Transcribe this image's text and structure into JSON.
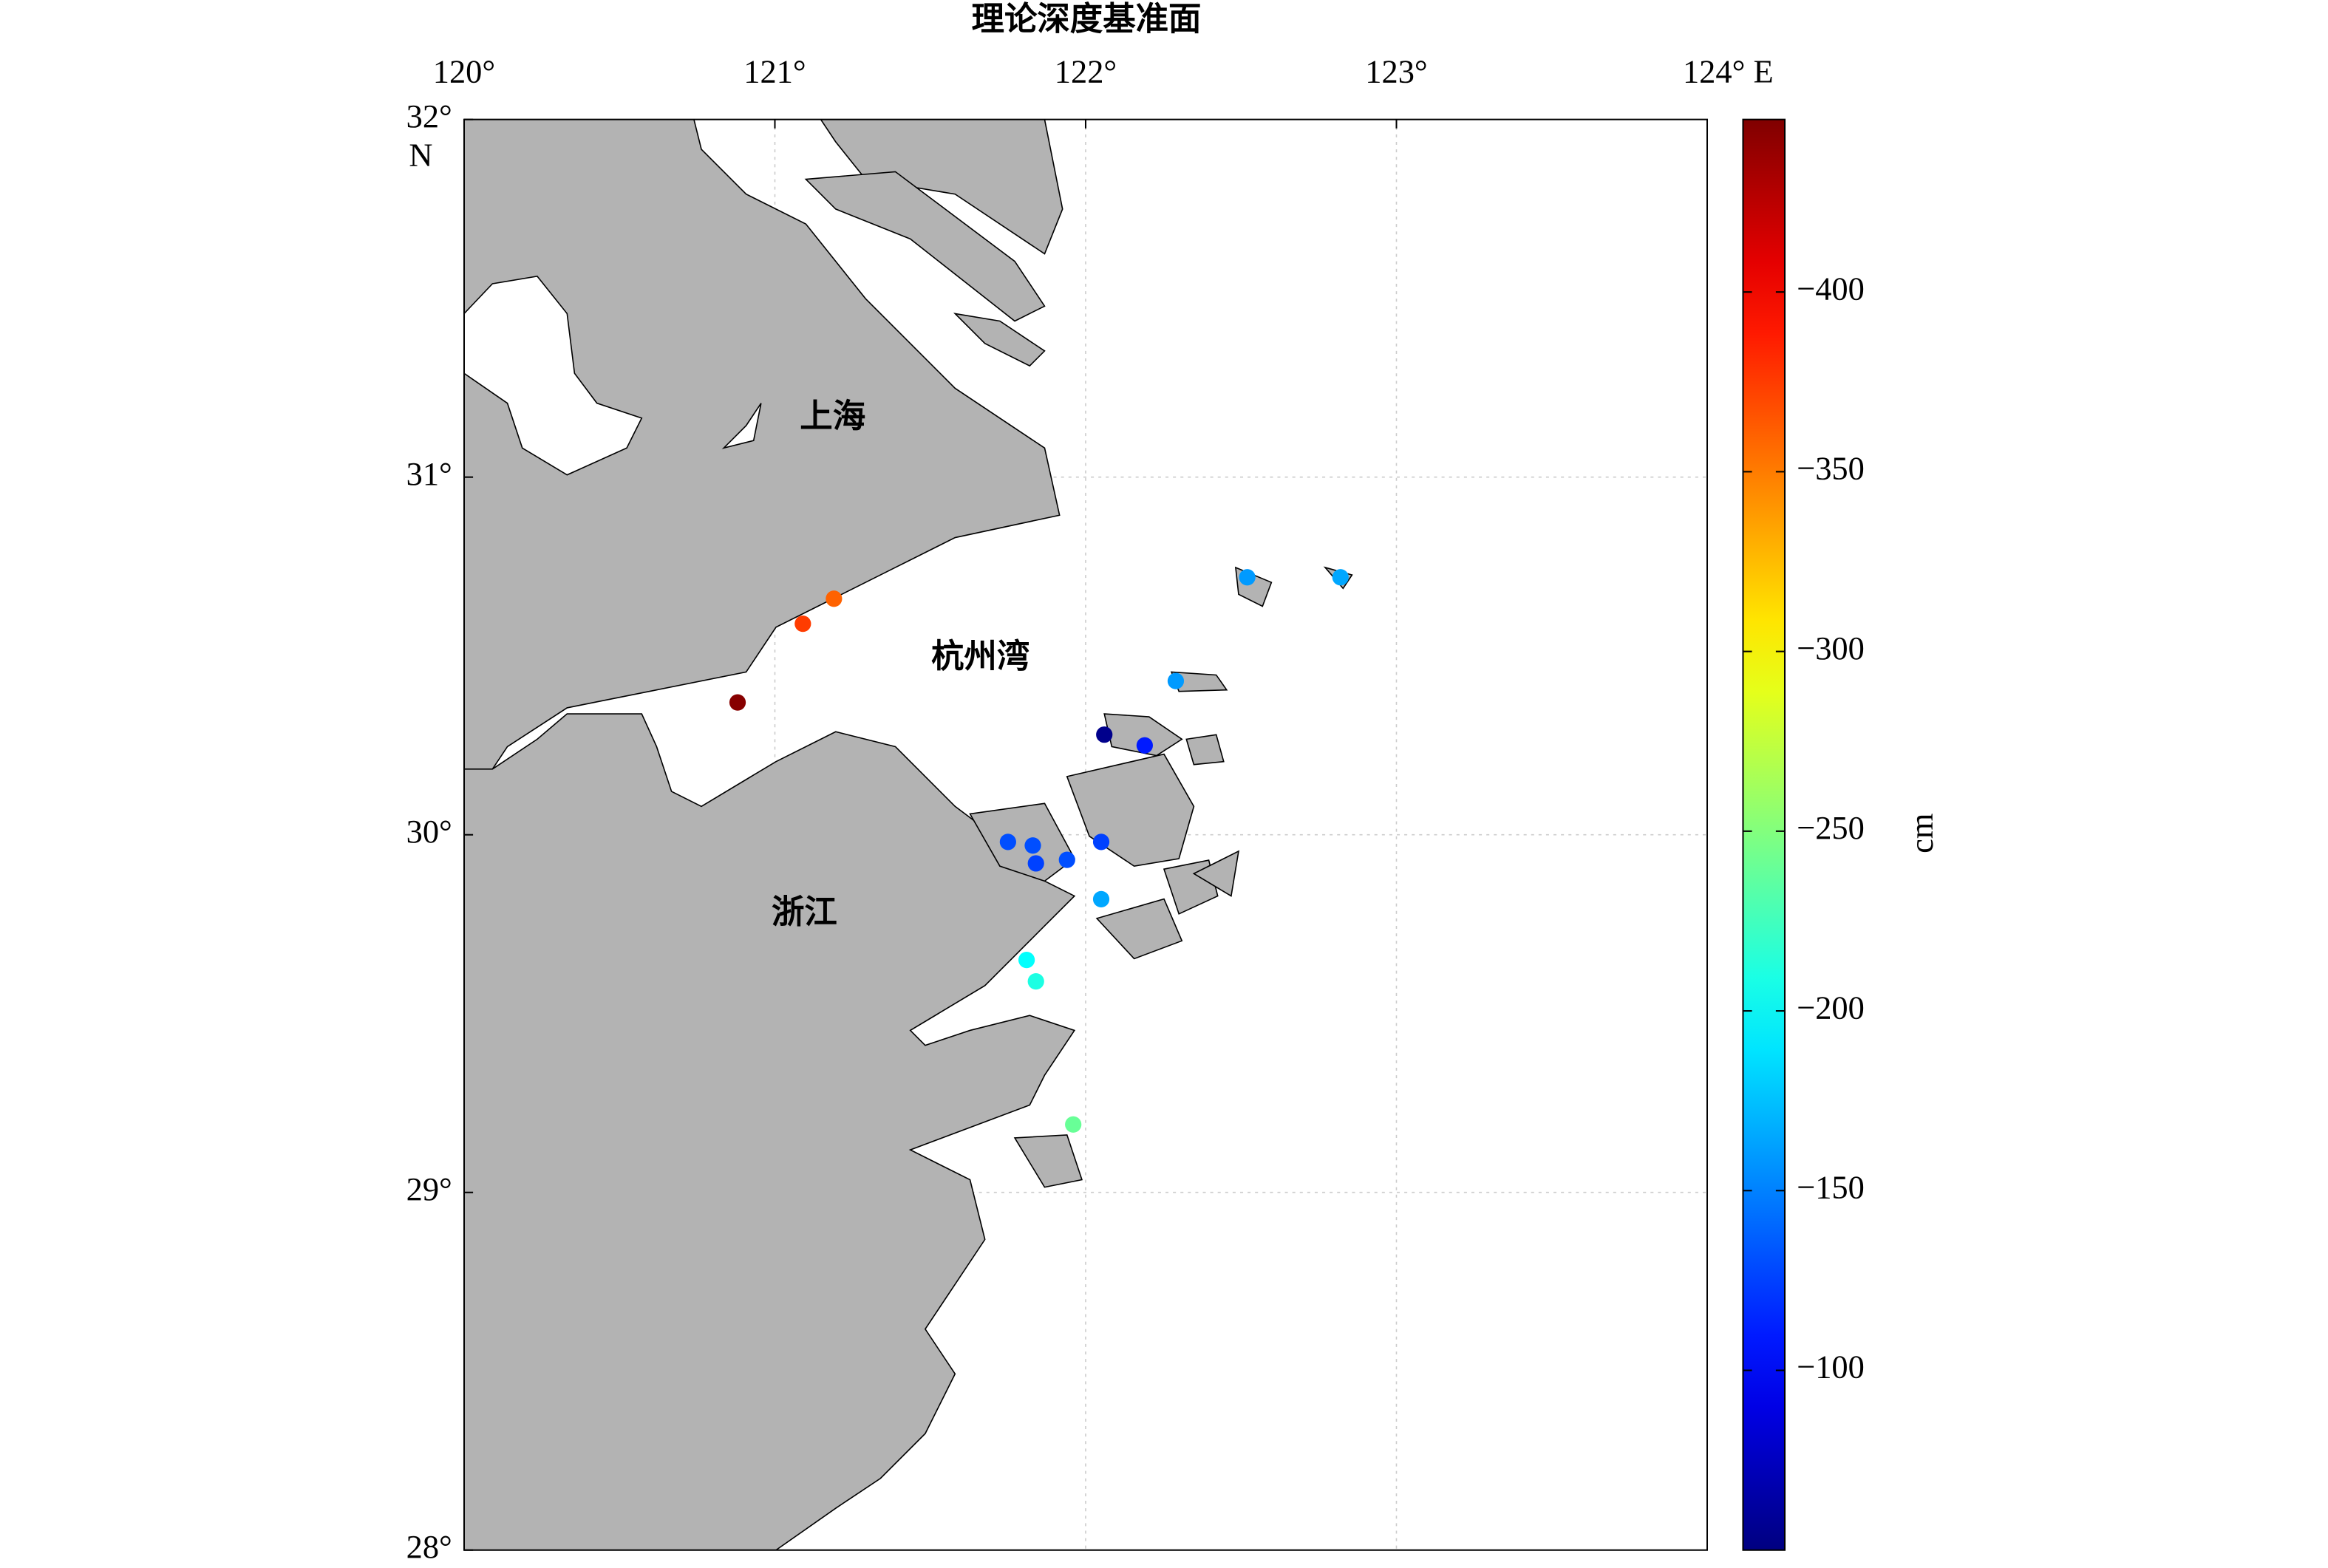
{
  "chart_data": {
    "type": "scatter",
    "title": "理论深度基准面",
    "x": [
      122.52,
      122.82,
      121.19,
      121.09,
      120.88,
      122.29,
      122.06,
      122.19,
      121.75,
      121.83,
      122.05,
      121.84,
      121.94,
      122.05,
      121.81,
      121.84,
      121.96
    ],
    "y": [
      30.72,
      30.72,
      30.66,
      30.59,
      30.37,
      30.43,
      30.28,
      30.25,
      29.98,
      29.97,
      29.98,
      29.92,
      29.93,
      29.82,
      29.65,
      29.59,
      29.19
    ],
    "values": [
      -160,
      -165,
      -360,
      -375,
      -445,
      -160,
      -55,
      -110,
      -130,
      -130,
      -125,
      -125,
      -130,
      -165,
      -200,
      -210,
      -240
    ],
    "xlim": [
      120,
      124
    ],
    "ylim": [
      28,
      32
    ],
    "xticks": [
      {
        "value": 120,
        "label": "120°"
      },
      {
        "value": 121,
        "label": "121°"
      },
      {
        "value": 122,
        "label": "122°"
      },
      {
        "value": 123,
        "label": "123°"
      },
      {
        "value": 124,
        "label": "124° E"
      }
    ],
    "yticks": [
      {
        "value": 28,
        "label": "28°"
      },
      {
        "value": 29,
        "label": "29°"
      },
      {
        "value": 30,
        "label": "30°"
      },
      {
        "value": 31,
        "label": "31°"
      },
      {
        "value": 32,
        "label": "32°"
      }
    ],
    "ylabel": "N",
    "grid": true,
    "place_labels": [
      "上海",
      "杭州湾",
      "浙江"
    ],
    "colorbar": {
      "lim": [
        -448,
        -50
      ],
      "colormap": "jet",
      "label": "cm",
      "ticks": [
        {
          "value": -400,
          "label": "−400"
        },
        {
          "value": -350,
          "label": "−350"
        },
        {
          "value": -300,
          "label": "−300"
        },
        {
          "value": -250,
          "label": "−250"
        },
        {
          "value": -200,
          "label": "−200"
        },
        {
          "value": -150,
          "label": "−150"
        },
        {
          "value": -100,
          "label": "−100"
        }
      ]
    }
  }
}
